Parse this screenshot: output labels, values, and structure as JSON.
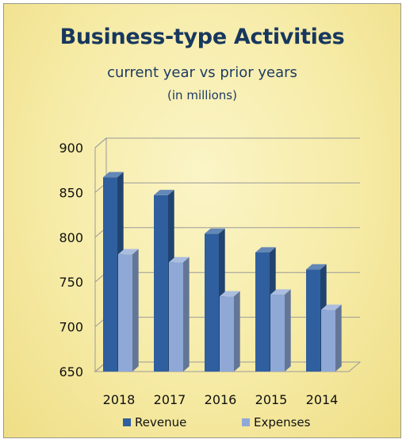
{
  "chart_data": {
    "type": "bar",
    "title": "Business-type Activities",
    "subtitle": "current year vs prior years",
    "unit_note": "(in millions)",
    "categories": [
      "2018",
      "2017",
      "2016",
      "2015",
      "2014"
    ],
    "series": [
      {
        "name": "Revenue",
        "values": [
          867,
          847,
          804,
          783,
          764
        ],
        "color": "#2f5f9e"
      },
      {
        "name": "Expenses",
        "values": [
          781,
          772,
          734,
          736,
          719
        ],
        "color": "#8fa8d6"
      }
    ],
    "ylim": [
      650,
      900
    ],
    "yticks": [
      "900",
      "850",
      "800",
      "750",
      "700",
      "650"
    ],
    "grid": true,
    "legend": "bottom",
    "background": "#f6eba6"
  }
}
